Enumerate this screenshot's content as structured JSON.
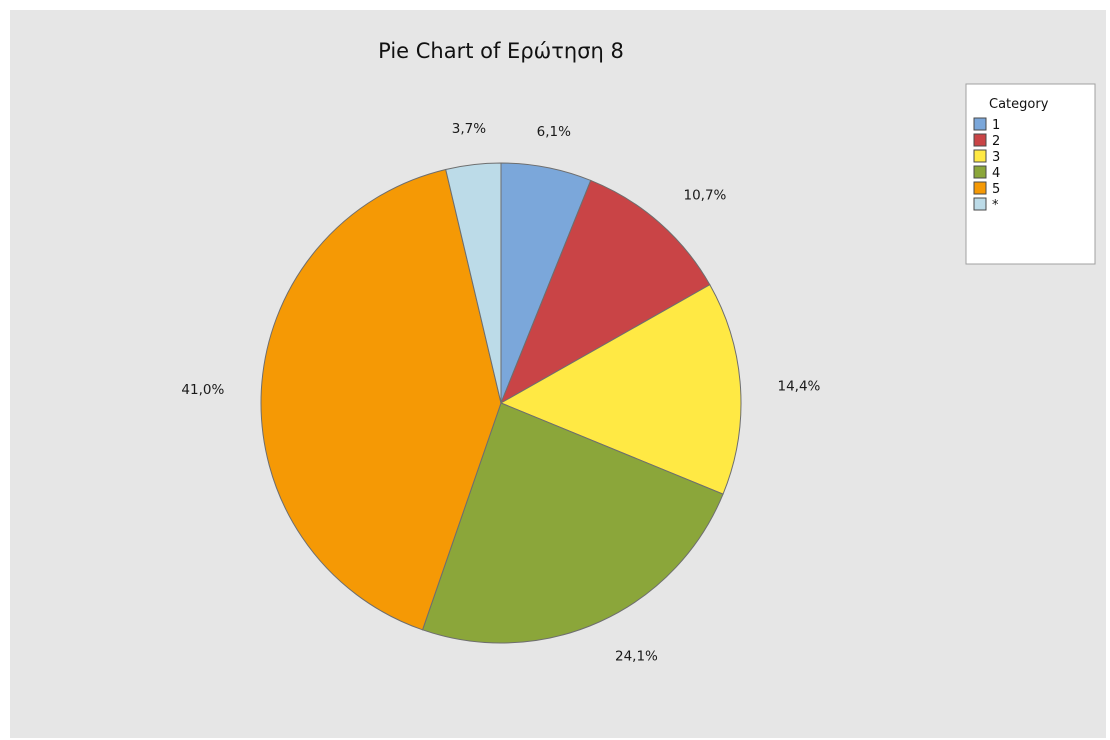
{
  "chart_data": {
    "type": "pie",
    "title": "Pie Chart of Ερώτηση 8",
    "legend": {
      "title": "Category",
      "placement": "top-right"
    },
    "slices": [
      {
        "category": "1",
        "value": 6.1,
        "label": "6,1%",
        "color": "#7ba7da"
      },
      {
        "category": "2",
        "value": 10.7,
        "label": "10,7%",
        "color": "#c94446"
      },
      {
        "category": "3",
        "value": 14.4,
        "label": "14,4%",
        "color": "#ffe944"
      },
      {
        "category": "4",
        "value": 24.1,
        "label": "24,1%",
        "color": "#8ba63a"
      },
      {
        "category": "5",
        "value": 41.0,
        "label": "41,0%",
        "color": "#f59905"
      },
      {
        "category": "*",
        "value": 3.7,
        "label": "3,7%",
        "color": "#bcdbe8"
      }
    ]
  }
}
